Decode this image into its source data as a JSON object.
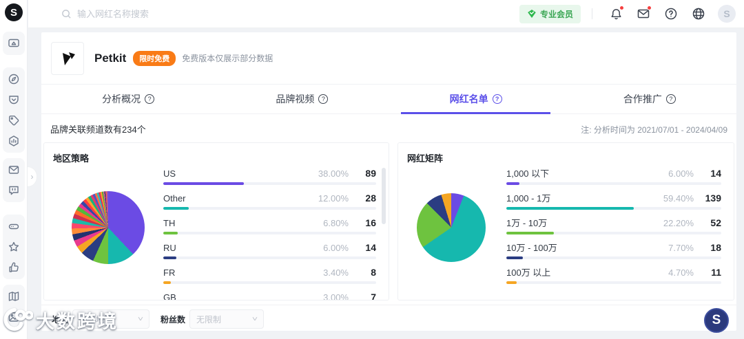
{
  "header": {
    "search_placeholder": "输入网红名称搜索",
    "member_badge": "专业会员",
    "icons": [
      "bell-icon",
      "mail-icon",
      "help-icon",
      "globe-icon"
    ],
    "avatar_letter": "S",
    "notification_dot_color": "#f53f3f",
    "member_color": "#3ba654"
  },
  "sidebar": {
    "logo_letter": "S",
    "icons": [
      "screen-share-icon",
      "compass-icon",
      "pocket-icon",
      "tag-icon",
      "hexagon-stats-icon",
      "mail-icon",
      "chat-icon",
      "drive-icon",
      "star-icon",
      "thumbs-up-icon",
      "map-icon",
      "image-icon"
    ]
  },
  "brand": {
    "name": "Petkit",
    "badge": "限时免费",
    "note": "免费版本仅展示部分数据",
    "badge_color": "#f97b16"
  },
  "tabs": [
    {
      "label": "分析概况",
      "active": false
    },
    {
      "label": "品牌视频",
      "active": false
    },
    {
      "label": "网红名单",
      "active": true
    },
    {
      "label": "合作推广",
      "active": false
    }
  ],
  "active_tab_color": "#5b4fe9",
  "summary": {
    "left": "品牌关联频道数有234个",
    "right": "注: 分析时间为 2021/07/01 - 2024/04/09"
  },
  "chart_data": [
    {
      "type": "pie",
      "title": "地区策略",
      "legend_position": "right-list",
      "rows": [
        {
          "label": "US",
          "percent": 38.0,
          "percent_text": "38.00%",
          "count": 89,
          "color": "#6b4be4"
        },
        {
          "label": "Other",
          "percent": 12.0,
          "percent_text": "12.00%",
          "count": 28,
          "color": "#16b8ae"
        },
        {
          "label": "TH",
          "percent": 6.8,
          "percent_text": "6.80%",
          "count": 16,
          "color": "#6ec33f"
        },
        {
          "label": "RU",
          "percent": 6.0,
          "percent_text": "6.00%",
          "count": 14,
          "color": "#2b3d82"
        },
        {
          "label": "FR",
          "percent": 3.4,
          "percent_text": "3.40%",
          "count": 8,
          "color": "#f5a623"
        },
        {
          "label": "GB",
          "percent": 3.0,
          "percent_text": "3.00%",
          "count": 7,
          "color": "#e93a8e",
          "clipped": true
        }
      ],
      "other_slices": [
        {
          "value": 3.0,
          "color": "#e93a8e"
        },
        {
          "value": 2.8,
          "color": "#243270"
        },
        {
          "value": 2.6,
          "color": "#ff8c37"
        },
        {
          "value": 2.4,
          "color": "#f9486b"
        },
        {
          "value": 2.2,
          "color": "#1db9a9"
        },
        {
          "value": 2.0,
          "color": "#ce2f4f"
        },
        {
          "value": 1.9,
          "color": "#ff6b2a"
        },
        {
          "value": 1.8,
          "color": "#53b93c"
        },
        {
          "value": 1.6,
          "color": "#e8388f"
        },
        {
          "value": 1.5,
          "color": "#3447a8"
        },
        {
          "value": 1.4,
          "color": "#ff4040"
        },
        {
          "value": 1.3,
          "color": "#ffa32e"
        },
        {
          "value": 1.2,
          "color": "#19b57c"
        },
        {
          "value": 1.1,
          "color": "#e23a6f"
        },
        {
          "value": 1.0,
          "color": "#4a59c4"
        },
        {
          "value": 0.9,
          "color": "#ff7042"
        },
        {
          "value": 0.8,
          "color": "#27bfc0"
        },
        {
          "value": 0.8,
          "color": "#d9335c"
        },
        {
          "value": 0.7,
          "color": "#ff9b2e"
        },
        {
          "value": 0.6,
          "color": "#4fae3a"
        },
        {
          "value": 0.5,
          "color": "#f06292"
        },
        {
          "value": 0.5,
          "color": "#2b3d82"
        },
        {
          "value": 0.5,
          "color": "#ff5757"
        },
        {
          "value": 0.7,
          "color": "#9b59b6"
        }
      ]
    },
    {
      "type": "pie",
      "title": "网红矩阵",
      "legend_position": "right-list",
      "rows": [
        {
          "label": "1,000 以下",
          "percent": 6.0,
          "percent_text": "6.00%",
          "count": 14,
          "color": "#6b4be4"
        },
        {
          "label": "1,000 - 1万",
          "percent": 59.4,
          "percent_text": "59.40%",
          "count": 139,
          "color": "#16b8ae"
        },
        {
          "label": "1万 - 10万",
          "percent": 22.2,
          "percent_text": "22.20%",
          "count": 52,
          "color": "#6ec33f"
        },
        {
          "label": "10万 - 100万",
          "percent": 7.7,
          "percent_text": "7.70%",
          "count": 18,
          "color": "#2b3d82"
        },
        {
          "label": "100万 以上",
          "percent": 4.7,
          "percent_text": "4.70%",
          "count": 11,
          "color": "#f5a623"
        }
      ]
    }
  ],
  "filters": {
    "region_label": "地区",
    "region_value": "全部地区",
    "fans_label": "粉丝数",
    "fans_value": "无限制"
  },
  "watermark": {
    "text": "大数跨境"
  },
  "float_button_letter": "S"
}
